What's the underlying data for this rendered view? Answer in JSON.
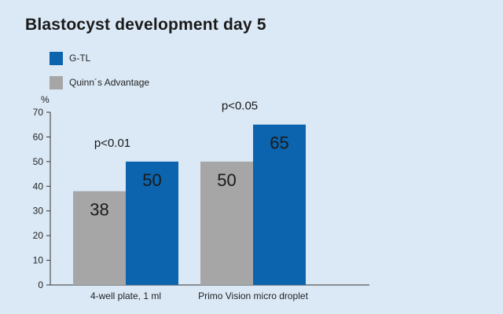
{
  "chart_data": {
    "type": "bar",
    "title": "Blastocyst development day 5",
    "ylabel": "%",
    "ylim": [
      0,
      70
    ],
    "yticks": [
      0,
      10,
      20,
      30,
      40,
      50,
      60,
      70
    ],
    "categories": [
      "4-well plate, 1 ml",
      "Primo Vision micro droplet"
    ],
    "series": [
      {
        "name": "Quinn´s Advantage",
        "values": [
          38,
          50
        ],
        "color": "#a6a6a6"
      },
      {
        "name": "G-TL",
        "values": [
          50,
          65
        ],
        "color": "#0b64ad"
      }
    ],
    "annotations": [
      "p<0.01",
      "p<0.05"
    ],
    "legend_position": "top-left",
    "grid": false
  }
}
